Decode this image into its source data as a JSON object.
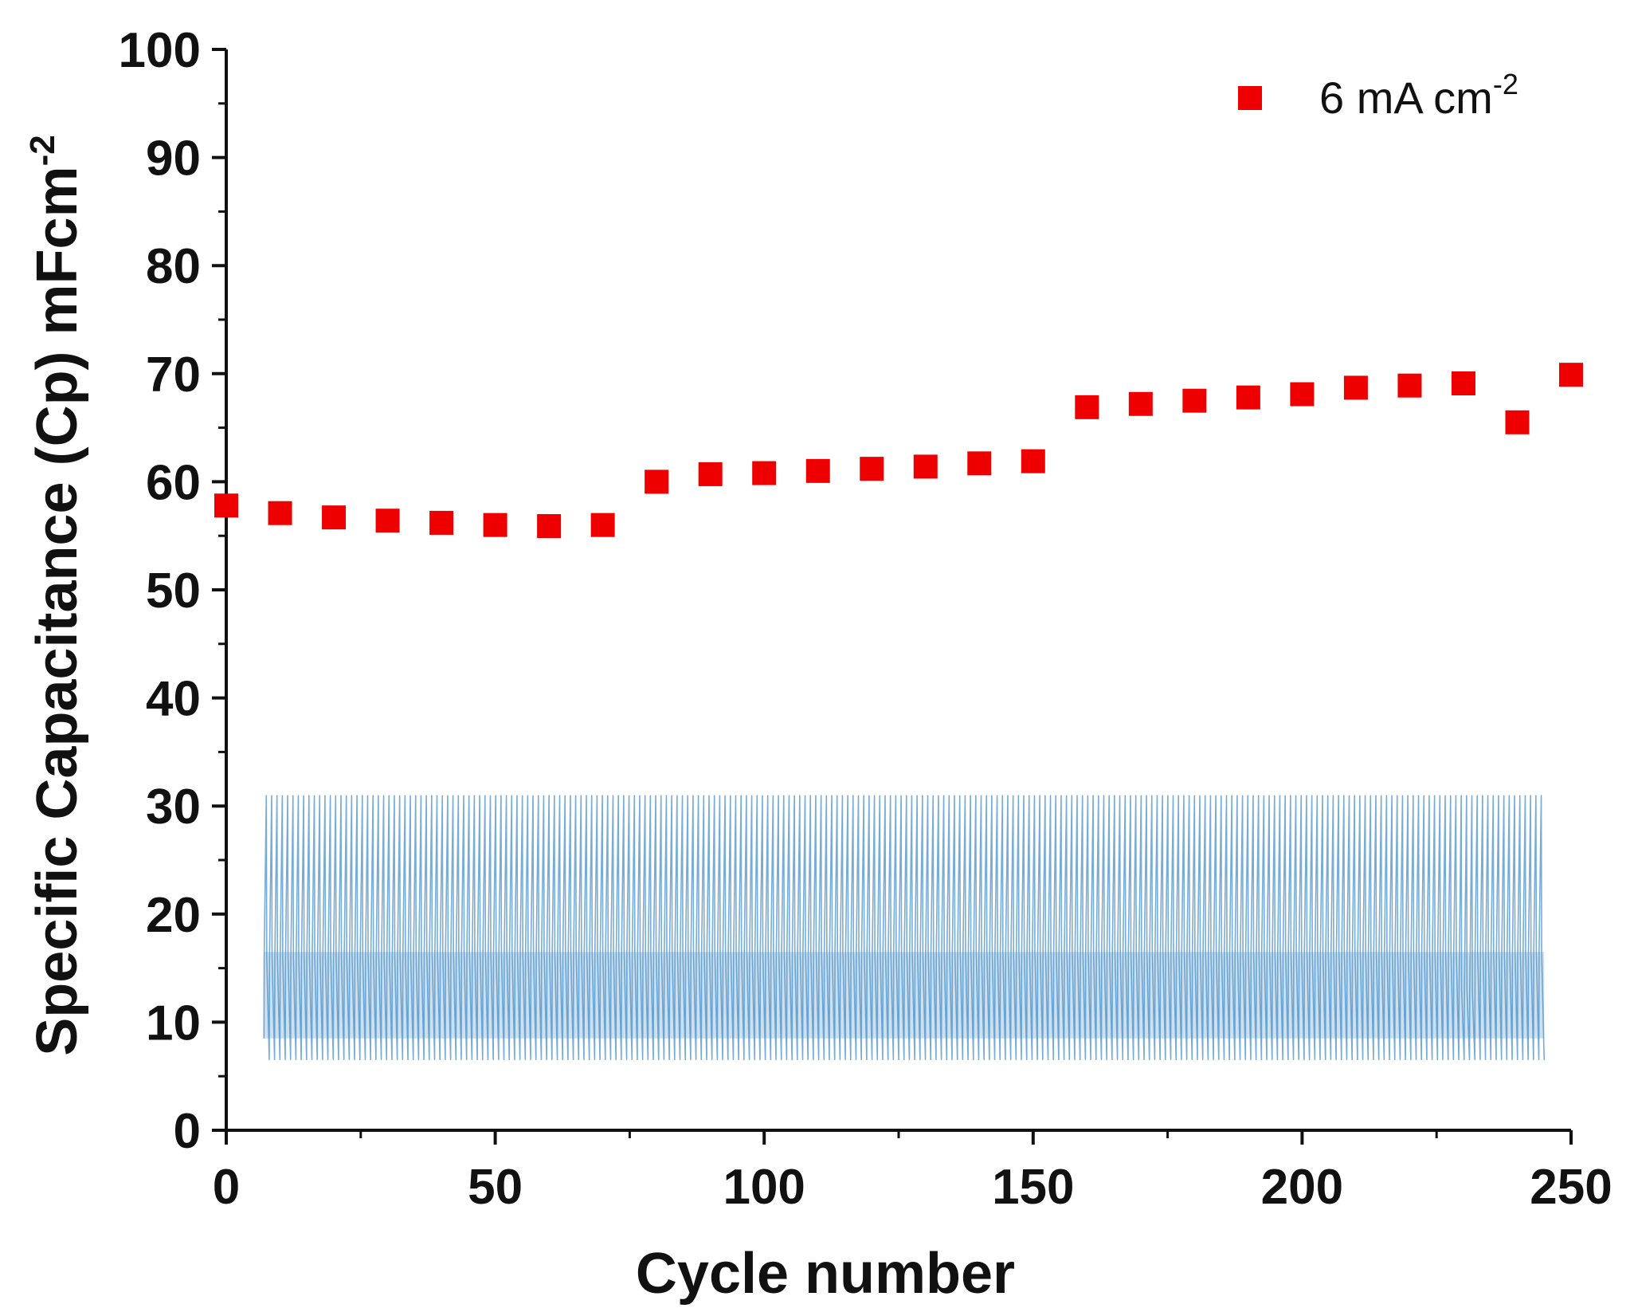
{
  "chart_data": {
    "type": "scatter",
    "title": "",
    "xlabel": "Cycle number",
    "ylabel": {
      "main": "Specific Capacitance (Cp) mFcm",
      "superscript": "-2"
    },
    "xlim": [
      0,
      250
    ],
    "ylim": [
      0,
      100
    ],
    "x_ticks": [
      0,
      50,
      100,
      150,
      200,
      250
    ],
    "y_ticks": [
      0,
      10,
      20,
      30,
      40,
      50,
      60,
      70,
      80,
      90,
      100
    ],
    "grid": false,
    "legend": {
      "position": "top-right",
      "label": "6 mA cm",
      "superscript": "-2"
    },
    "series": [
      {
        "name": "6 mA cm-2",
        "marker": "square",
        "color": "#ee0000",
        "points": [
          {
            "x": 0,
            "y": 57.8
          },
          {
            "x": 10,
            "y": 57.1
          },
          {
            "x": 20,
            "y": 56.7
          },
          {
            "x": 30,
            "y": 56.4
          },
          {
            "x": 40,
            "y": 56.2
          },
          {
            "x": 50,
            "y": 56.0
          },
          {
            "x": 60,
            "y": 55.9
          },
          {
            "x": 70,
            "y": 56.0
          },
          {
            "x": 80,
            "y": 60.0
          },
          {
            "x": 90,
            "y": 60.7
          },
          {
            "x": 100,
            "y": 60.8
          },
          {
            "x": 110,
            "y": 61.0
          },
          {
            "x": 120,
            "y": 61.2
          },
          {
            "x": 130,
            "y": 61.4
          },
          {
            "x": 140,
            "y": 61.7
          },
          {
            "x": 150,
            "y": 61.9
          },
          {
            "x": 160,
            "y": 66.9
          },
          {
            "x": 170,
            "y": 67.2
          },
          {
            "x": 180,
            "y": 67.5
          },
          {
            "x": 190,
            "y": 67.8
          },
          {
            "x": 200,
            "y": 68.1
          },
          {
            "x": 210,
            "y": 68.7
          },
          {
            "x": 220,
            "y": 68.9
          },
          {
            "x": 230,
            "y": 69.1
          },
          {
            "x": 240,
            "y": 65.5
          },
          {
            "x": 250,
            "y": 69.9
          }
        ]
      }
    ],
    "inset": {
      "type": "line",
      "description_free": true,
      "color": "#4a90c8",
      "x_range": [
        7,
        245
      ],
      "peak_y": 31,
      "trough_y": 6.5,
      "mid_band_y": [
        8.5,
        16.5
      ],
      "irregular_at_x": 230
    }
  }
}
